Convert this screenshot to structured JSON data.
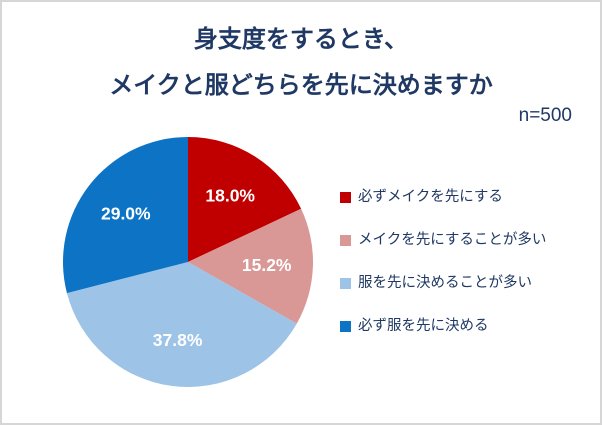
{
  "title": {
    "line1": "身支度をするとき、",
    "line2": "メイクと服どちらを先に決めますか"
  },
  "sample_size_label": "n=500",
  "chart_data": {
    "type": "pie",
    "title": "身支度をするとき、メイクと服どちらを先に決めますか",
    "sample_size": 500,
    "start_angle_deg": 0,
    "direction": "clockwise",
    "legend_position": "right",
    "series": [
      {
        "label": "必ずメイクを先にする",
        "value": 18.0,
        "display": "18.0%",
        "color": "#c00000"
      },
      {
        "label": "メイクを先にすることが多い",
        "value": 15.2,
        "display": "15.2%",
        "color": "#d99795"
      },
      {
        "label": "服を先に決めることが多い",
        "value": 37.8,
        "display": "37.8%",
        "color": "#9dc3e6"
      },
      {
        "label": "必ず服を先に決める",
        "value": 29.0,
        "display": "29.0%",
        "color": "#0d73c5"
      }
    ],
    "colors": {
      "title_text": "#1f3864",
      "legend_text": "#1f3864",
      "slice_label_text": "#ffffff",
      "frame_border": "#d6d6d6"
    }
  }
}
